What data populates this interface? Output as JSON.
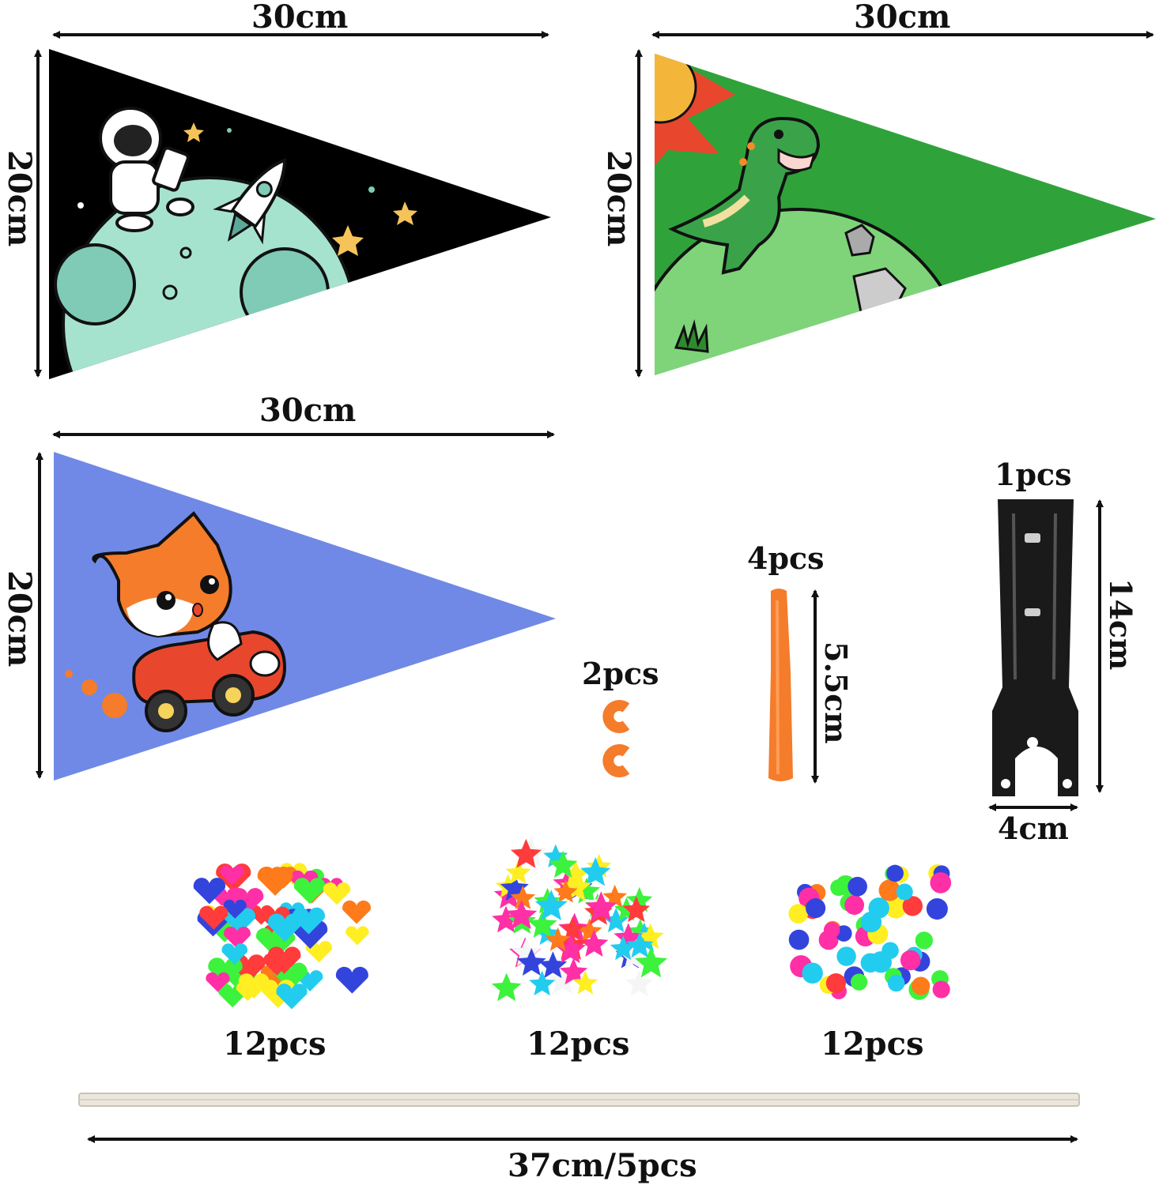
{
  "dimensions": {
    "flag_width": "30cm",
    "flag_height": "20cm",
    "bracket_height": "14cm",
    "bracket_width": "4cm",
    "tube_length": "5.5cm",
    "pole_spec": "37cm/5pcs"
  },
  "quantities": {
    "bracket": "1pcs",
    "tubes": "4pcs",
    "clips": "2pcs",
    "hearts": "12pcs",
    "stars": "12pcs",
    "beads": "12pcs"
  },
  "colors": {
    "space_flag": "#000000",
    "dino_flag": "#2fa33a",
    "fox_flag": "#7089e6",
    "accent_orange": "#f47c2b",
    "bracket": "#1a1a1a"
  },
  "icons": [
    "astronaut",
    "rocket",
    "planet",
    "t-rex-dinosaur",
    "sun",
    "fox-in-car",
    "heart-beads",
    "star-beads",
    "round-beads"
  ]
}
